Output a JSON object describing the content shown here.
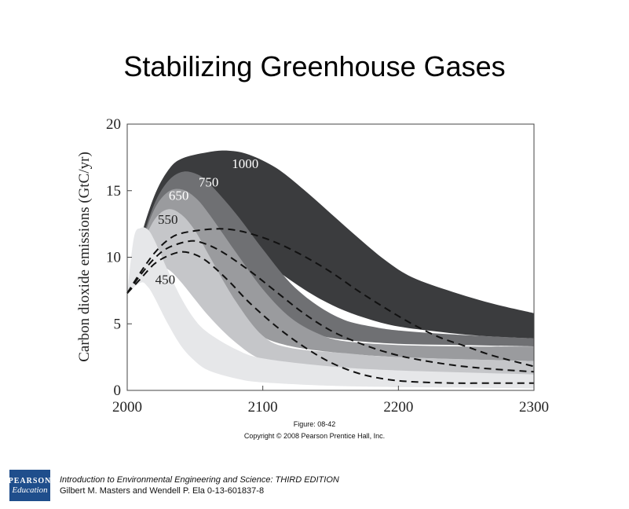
{
  "title": "Stabilizing Greenhouse Gases",
  "figure_label": "Figure: 08-42",
  "copyright": "Copyright © 2008 Pearson Prentice Hall, Inc.",
  "footer": {
    "logo_top": "PEARSON",
    "logo_bottom": "Education",
    "line1": "Introduction to Environmental Engineering and Science: THIRD EDITION",
    "line2": "Gilbert M. Masters and Wendell P. Ela  0-13-601837-8"
  },
  "colors": {
    "band_450": "#e6e7e9",
    "band_550": "#c5c6c9",
    "band_650": "#9a9b9e",
    "band_750": "#6f7073",
    "band_1000": "#3b3c3e"
  },
  "chart_data": {
    "type": "area",
    "title": "",
    "xlabel": "",
    "ylabel": "Carbon dioxide emissions (GtC/yr)",
    "xlim": [
      2000,
      2300
    ],
    "ylim": [
      0,
      20
    ],
    "x_ticks": [
      "2000",
      "2100",
      "2200",
      "2300"
    ],
    "y_ticks": [
      "0",
      "5",
      "10",
      "15",
      "20"
    ],
    "grid": false,
    "bands": [
      {
        "name": "1000",
        "upper": [
          [
            2000,
            7.3
          ],
          [
            2010,
            11.5
          ],
          [
            2020,
            14.6
          ],
          [
            2030,
            16.5
          ],
          [
            2040,
            17.4
          ],
          [
            2060,
            17.9
          ],
          [
            2075,
            18.0
          ],
          [
            2090,
            17.7
          ],
          [
            2110,
            16.7
          ],
          [
            2130,
            15.1
          ],
          [
            2150,
            13.3
          ],
          [
            2170,
            11.5
          ],
          [
            2190,
            9.8
          ],
          [
            2210,
            8.5
          ],
          [
            2240,
            7.4
          ],
          [
            2270,
            6.5
          ],
          [
            2300,
            5.8
          ]
        ],
        "lower": [
          [
            2000,
            7.3
          ],
          [
            2010,
            9.8
          ],
          [
            2020,
            11.8
          ],
          [
            2030,
            12.8
          ],
          [
            2040,
            13.1
          ],
          [
            2060,
            12.6
          ],
          [
            2080,
            11.3
          ],
          [
            2100,
            9.8
          ],
          [
            2120,
            8.3
          ],
          [
            2140,
            7.0
          ],
          [
            2160,
            6.0
          ],
          [
            2180,
            5.3
          ],
          [
            2200,
            4.8
          ],
          [
            2230,
            4.4
          ],
          [
            2260,
            4.1
          ],
          [
            2300,
            3.9
          ]
        ]
      },
      {
        "name": "750",
        "upper": [
          [
            2000,
            7.3
          ],
          [
            2010,
            11.0
          ],
          [
            2020,
            14.0
          ],
          [
            2030,
            15.7
          ],
          [
            2040,
            16.4
          ],
          [
            2050,
            16.3
          ],
          [
            2060,
            15.6
          ],
          [
            2080,
            13.3
          ],
          [
            2100,
            10.6
          ],
          [
            2120,
            8.1
          ],
          [
            2140,
            6.4
          ],
          [
            2160,
            5.3
          ],
          [
            2180,
            4.8
          ],
          [
            2200,
            4.5
          ],
          [
            2240,
            4.2
          ],
          [
            2300,
            3.9
          ]
        ],
        "lower": [
          [
            2000,
            7.3
          ],
          [
            2010,
            9.6
          ],
          [
            2020,
            11.2
          ],
          [
            2030,
            11.8
          ],
          [
            2040,
            11.7
          ],
          [
            2060,
            10.5
          ],
          [
            2080,
            8.5
          ],
          [
            2100,
            6.5
          ],
          [
            2120,
            5.0
          ],
          [
            2140,
            4.2
          ],
          [
            2160,
            3.8
          ],
          [
            2200,
            3.5
          ],
          [
            2250,
            3.4
          ],
          [
            2300,
            3.3
          ]
        ]
      },
      {
        "name": "650",
        "upper": [
          [
            2000,
            7.3
          ],
          [
            2010,
            10.8
          ],
          [
            2020,
            13.6
          ],
          [
            2030,
            14.9
          ],
          [
            2040,
            15.1
          ],
          [
            2050,
            14.5
          ],
          [
            2060,
            13.3
          ],
          [
            2080,
            10.4
          ],
          [
            2100,
            7.6
          ],
          [
            2120,
            5.5
          ],
          [
            2140,
            4.3
          ],
          [
            2160,
            3.7
          ],
          [
            2200,
            3.4
          ],
          [
            2250,
            3.3
          ],
          [
            2300,
            3.3
          ]
        ],
        "lower": [
          [
            2000,
            7.3
          ],
          [
            2010,
            9.4
          ],
          [
            2020,
            10.5
          ],
          [
            2030,
            10.8
          ],
          [
            2040,
            10.2
          ],
          [
            2060,
            8.2
          ],
          [
            2080,
            5.9
          ],
          [
            2095,
            4.4
          ],
          [
            2110,
            3.6
          ],
          [
            2140,
            3.0
          ],
          [
            2200,
            2.5
          ],
          [
            2300,
            2.2
          ]
        ]
      },
      {
        "name": "550",
        "upper": [
          [
            2000,
            7.3
          ],
          [
            2010,
            10.6
          ],
          [
            2020,
            12.8
          ],
          [
            2030,
            13.6
          ],
          [
            2040,
            13.2
          ],
          [
            2050,
            12.0
          ],
          [
            2060,
            10.2
          ],
          [
            2080,
            6.7
          ],
          [
            2100,
            4.1
          ],
          [
            2120,
            3.2
          ],
          [
            2160,
            2.8
          ],
          [
            2200,
            2.5
          ],
          [
            2300,
            2.2
          ]
        ],
        "lower": [
          [
            2000,
            7.3
          ],
          [
            2010,
            9.0
          ],
          [
            2020,
            9.4
          ],
          [
            2030,
            9.1
          ],
          [
            2040,
            8.1
          ],
          [
            2060,
            5.6
          ],
          [
            2080,
            3.6
          ],
          [
            2100,
            2.3
          ],
          [
            2130,
            1.8
          ],
          [
            2200,
            1.4
          ],
          [
            2300,
            1.1
          ]
        ]
      },
      {
        "name": "450",
        "upper": [
          [
            2000,
            7.3
          ],
          [
            2005,
            11.5
          ],
          [
            2010,
            12.2
          ],
          [
            2015,
            12.1
          ],
          [
            2020,
            11.3
          ],
          [
            2030,
            9.0
          ],
          [
            2040,
            6.9
          ],
          [
            2050,
            5.3
          ],
          [
            2060,
            4.3
          ],
          [
            2080,
            3.1
          ],
          [
            2100,
            2.4
          ],
          [
            2150,
            1.8
          ],
          [
            2200,
            1.5
          ],
          [
            2300,
            1.2
          ]
        ],
        "lower": [
          [
            2000,
            7.3
          ],
          [
            2010,
            8.1
          ],
          [
            2015,
            7.8
          ],
          [
            2020,
            7.0
          ],
          [
            2030,
            5.0
          ],
          [
            2040,
            3.3
          ],
          [
            2050,
            2.2
          ],
          [
            2060,
            1.5
          ],
          [
            2080,
            0.9
          ],
          [
            2100,
            0.6
          ],
          [
            2150,
            0.35
          ],
          [
            2200,
            0.25
          ],
          [
            2300,
            0.15
          ]
        ]
      }
    ],
    "dashed_lines": [
      {
        "points": [
          [
            2000,
            7.3
          ],
          [
            2010,
            8.9
          ],
          [
            2020,
            10.3
          ],
          [
            2030,
            11.3
          ],
          [
            2040,
            11.8
          ],
          [
            2060,
            12.1
          ],
          [
            2075,
            12.1
          ],
          [
            2090,
            11.8
          ],
          [
            2110,
            11.1
          ],
          [
            2130,
            10.1
          ],
          [
            2150,
            8.9
          ],
          [
            2170,
            7.5
          ],
          [
            2190,
            6.2
          ],
          [
            2210,
            5.0
          ],
          [
            2230,
            4.0
          ],
          [
            2250,
            3.3
          ],
          [
            2270,
            2.6
          ],
          [
            2300,
            1.8
          ]
        ]
      },
      {
        "points": [
          [
            2000,
            7.3
          ],
          [
            2010,
            8.7
          ],
          [
            2020,
            9.9
          ],
          [
            2030,
            10.7
          ],
          [
            2045,
            11.2
          ],
          [
            2055,
            11.1
          ],
          [
            2070,
            10.4
          ],
          [
            2090,
            9.0
          ],
          [
            2110,
            7.4
          ],
          [
            2130,
            5.8
          ],
          [
            2150,
            4.5
          ],
          [
            2170,
            3.6
          ],
          [
            2190,
            2.9
          ],
          [
            2210,
            2.4
          ],
          [
            2240,
            1.9
          ],
          [
            2270,
            1.6
          ],
          [
            2300,
            1.4
          ]
        ]
      },
      {
        "points": [
          [
            2000,
            7.3
          ],
          [
            2010,
            8.4
          ],
          [
            2020,
            9.5
          ],
          [
            2030,
            10.1
          ],
          [
            2040,
            10.4
          ],
          [
            2050,
            10.2
          ],
          [
            2060,
            9.6
          ],
          [
            2075,
            8.2
          ],
          [
            2090,
            6.6
          ],
          [
            2110,
            4.8
          ],
          [
            2130,
            3.3
          ],
          [
            2150,
            2.1
          ],
          [
            2170,
            1.3
          ],
          [
            2190,
            0.85
          ],
          [
            2210,
            0.65
          ],
          [
            2240,
            0.55
          ],
          [
            2270,
            0.55
          ],
          [
            2300,
            0.55
          ]
        ]
      }
    ],
    "band_labels": [
      {
        "text": "1000",
        "x": 2087,
        "y": 16.7
      },
      {
        "text": "750",
        "x": 2060,
        "y": 15.3
      },
      {
        "text": "650",
        "x": 2038,
        "y": 14.3
      },
      {
        "text": "550",
        "x": 2030,
        "y": 12.5
      },
      {
        "text": "450",
        "x": 2028,
        "y": 8.0
      }
    ]
  }
}
